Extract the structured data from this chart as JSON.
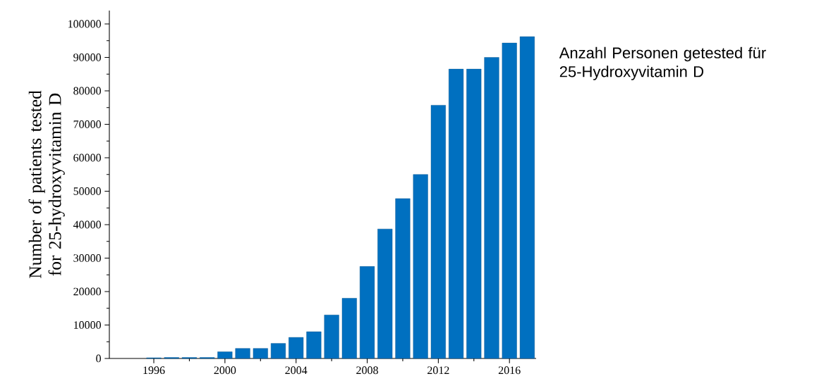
{
  "chart_data": {
    "type": "bar",
    "ylabel": "Number of patients tested for 25-hydroxyvitamin D",
    "annotations": [
      "Anzahl Personen getested für 25-Hydroxyvitamin D"
    ],
    "x": [
      1996,
      1997,
      1998,
      1999,
      2000,
      2001,
      2002,
      2003,
      2004,
      2005,
      2006,
      2007,
      2008,
      2009,
      2010,
      2011,
      2012,
      2013,
      2014,
      2015,
      2016,
      2017
    ],
    "values": [
      200,
      300,
      300,
      300,
      2000,
      3000,
      3000,
      4500,
      6300,
      8000,
      13000,
      18000,
      27500,
      38700,
      47800,
      55000,
      75700,
      86500,
      86500,
      90000,
      94300,
      96200
    ],
    "color": "#0070c0",
    "xlim": [
      1993.5,
      2017.5
    ],
    "xticks": [
      1996,
      2000,
      2004,
      2008,
      2012,
      2016
    ],
    "ylim": [
      0,
      104000
    ],
    "yticks": [
      0,
      10000,
      20000,
      30000,
      40000,
      50000,
      60000,
      70000,
      80000,
      90000,
      100000
    ]
  }
}
